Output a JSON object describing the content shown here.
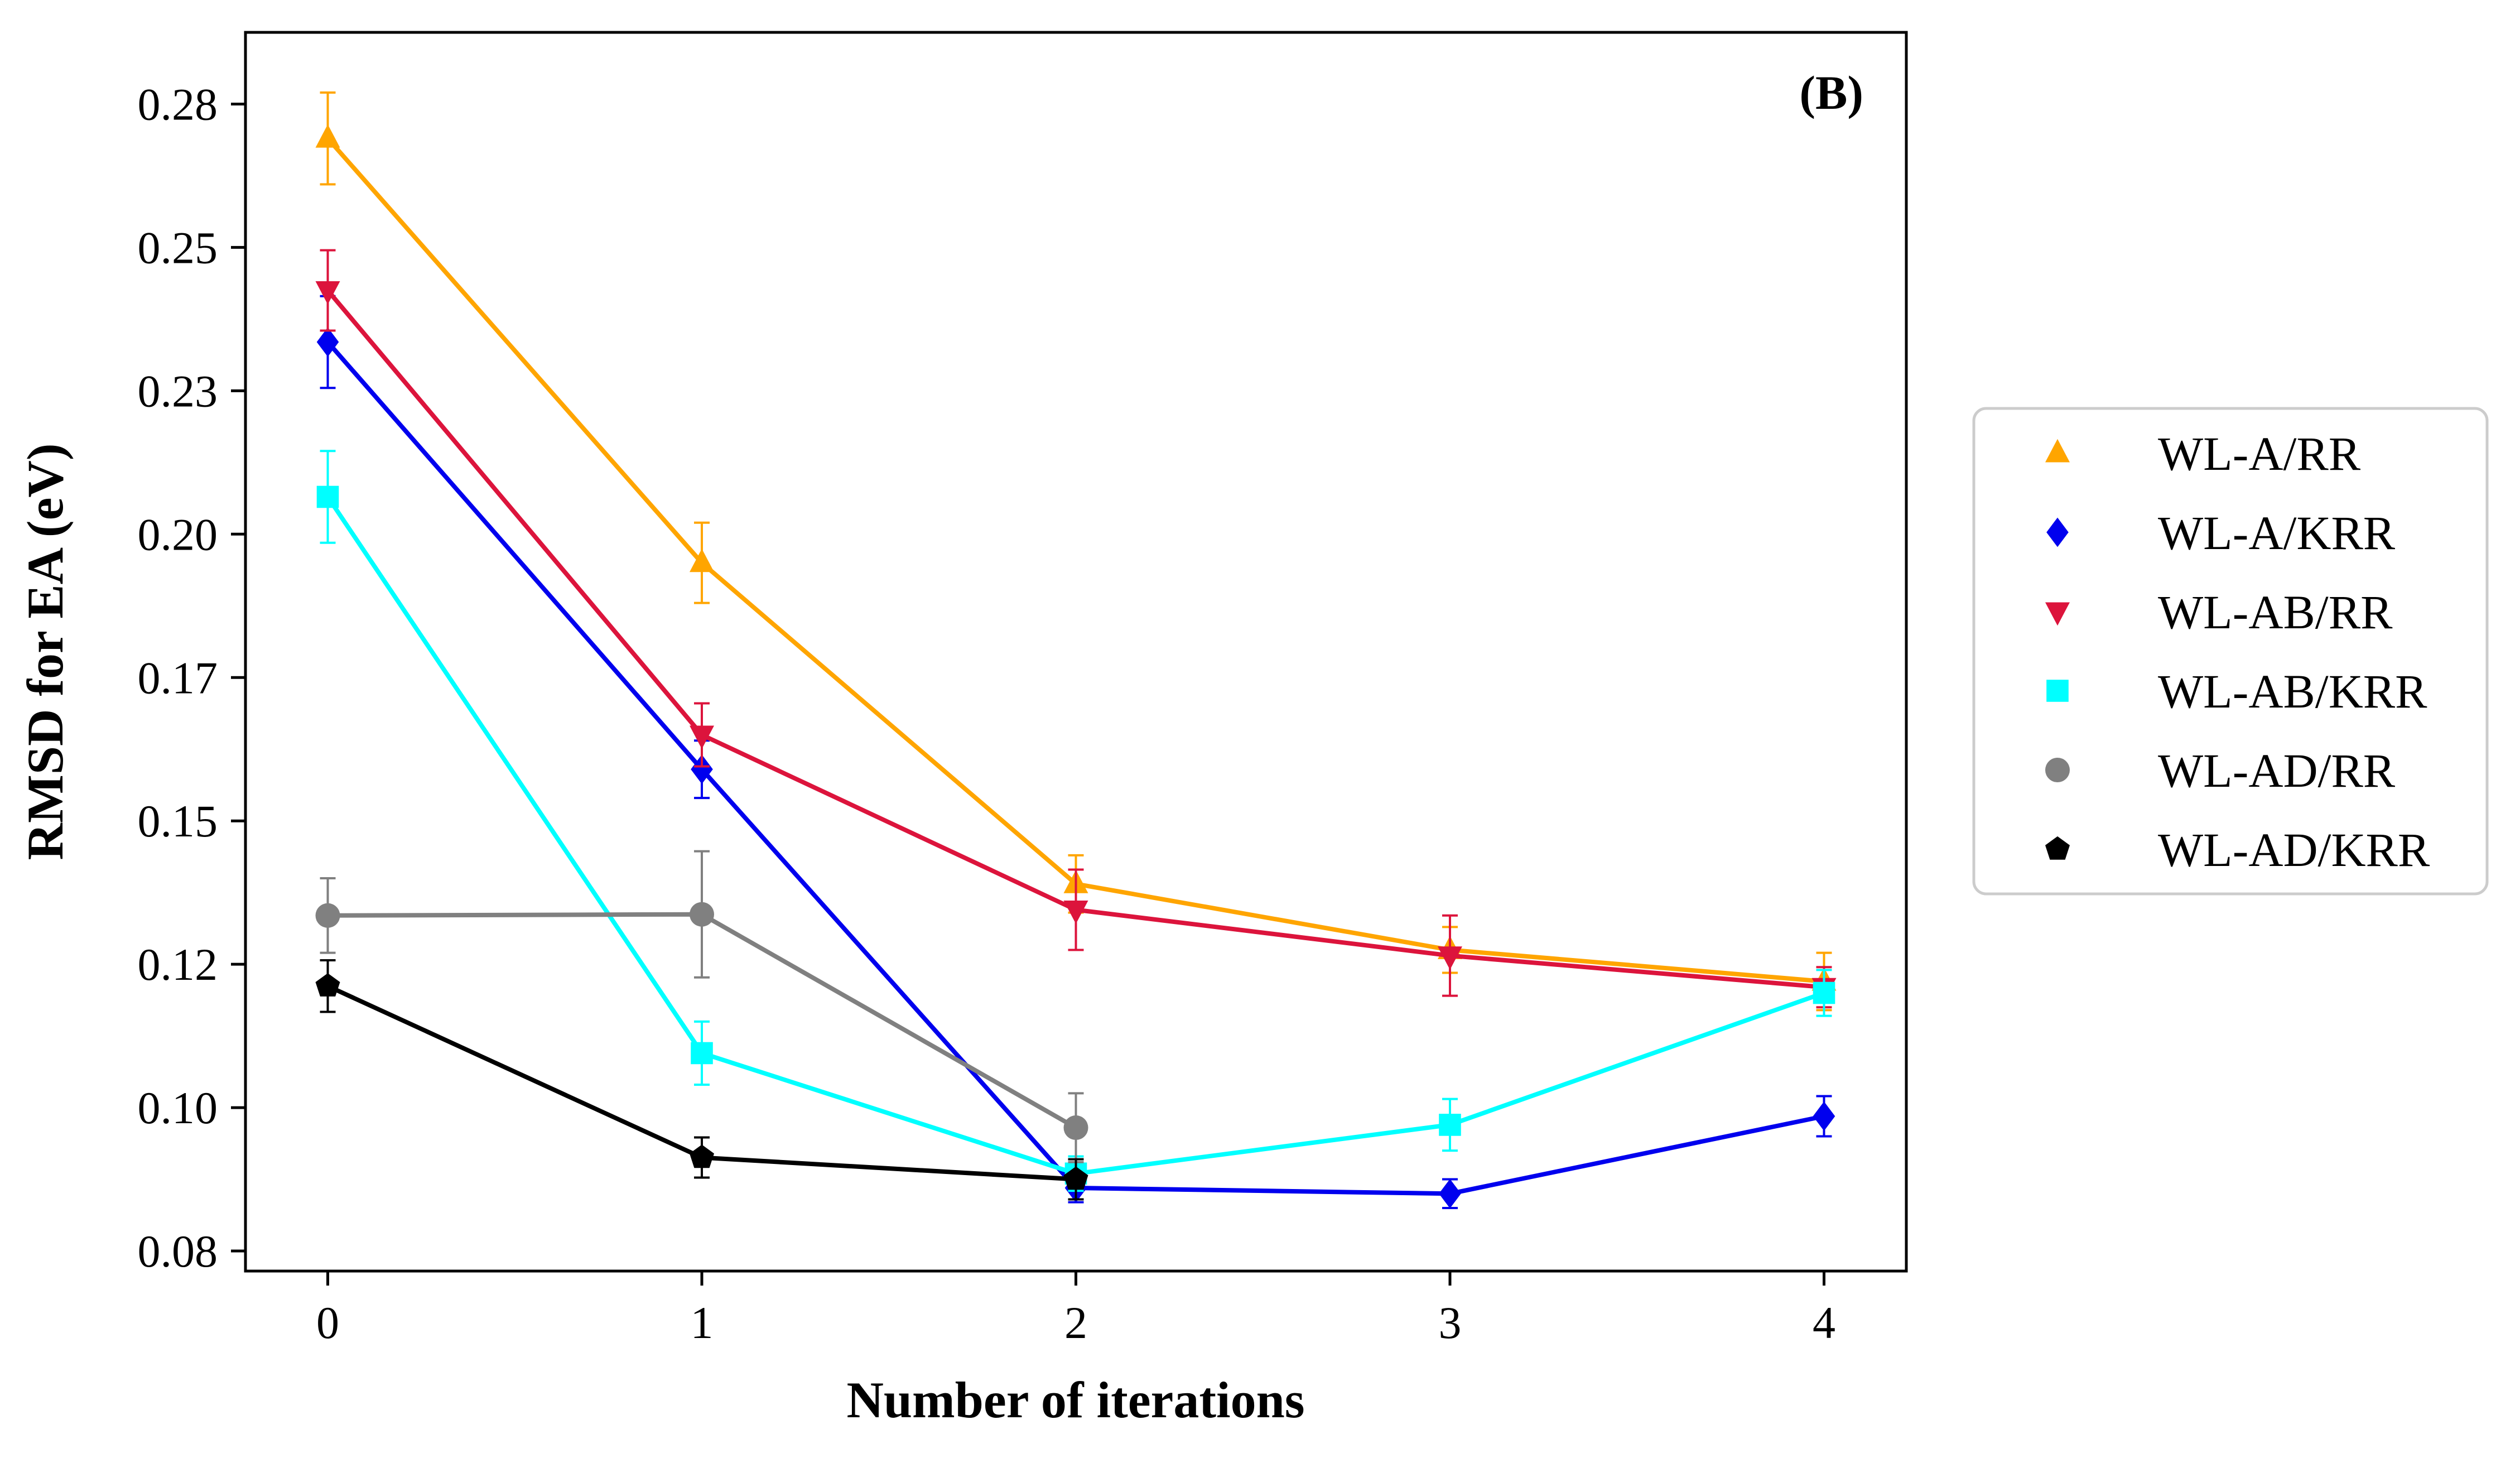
{
  "chart_data": {
    "type": "line",
    "panel_label": "(B)",
    "xlabel": "Number of iterations",
    "ylabel": "RMSD for EA (eV)",
    "x_ticks": [
      0,
      1,
      2,
      3,
      4
    ],
    "x_tick_labels": [
      "0",
      "1",
      "2",
      "3",
      "4"
    ],
    "y_ticks": [
      0.075,
      0.1,
      0.125,
      0.15,
      0.175,
      0.2,
      0.225,
      0.25,
      0.275
    ],
    "y_tick_labels": [
      "0.08",
      "0.10",
      "0.12",
      "0.15",
      "0.17",
      "0.20",
      "0.23",
      "0.25",
      "0.28"
    ],
    "xlim": [
      -0.22,
      4.22
    ],
    "ylim": [
      0.0715,
      0.2875
    ],
    "grid": false,
    "legend_position": "outside right",
    "series": [
      {
        "name": "WL-A/RR",
        "color": "#FFA500",
        "marker": "triangle-up",
        "x": [
          0,
          1,
          2,
          3,
          4
        ],
        "y": [
          0.269,
          0.195,
          0.139,
          0.1275,
          0.122
        ],
        "err": [
          0.008,
          0.007,
          0.005,
          0.004,
          0.005
        ]
      },
      {
        "name": "WL-A/KRR",
        "color": "#0000EE",
        "marker": "diamond",
        "x": [
          0,
          1,
          2,
          3,
          4
        ],
        "y": [
          0.2335,
          0.159,
          0.086,
          0.085,
          0.0985
        ],
        "err": [
          0.008,
          0.005,
          0.0025,
          0.0025,
          0.0035
        ]
      },
      {
        "name": "WL-AB/RR",
        "color": "#DC143C",
        "marker": "triangle-down",
        "x": [
          0,
          1,
          2,
          3,
          4
        ],
        "y": [
          0.2425,
          0.165,
          0.1345,
          0.1265,
          0.121
        ],
        "err": [
          0.007,
          0.0055,
          0.007,
          0.007,
          0.0035
        ]
      },
      {
        "name": "WL-AB/KRR",
        "color": "#00FFFF",
        "marker": "square",
        "x": [
          0,
          1,
          2,
          3,
          4
        ],
        "y": [
          0.2065,
          0.1095,
          0.0885,
          0.097,
          0.12
        ],
        "err": [
          0.008,
          0.0055,
          0.003,
          0.0045,
          0.004
        ]
      },
      {
        "name": "WL-AD/RR",
        "color": "#808080",
        "marker": "circle",
        "x": [
          0,
          1,
          2
        ],
        "y": [
          0.1335,
          0.1337,
          0.0965
        ],
        "err": [
          0.0065,
          0.011,
          0.006
        ]
      },
      {
        "name": "WL-AD/KRR",
        "color": "#000000",
        "marker": "pentagon",
        "x": [
          0,
          1,
          2
        ],
        "y": [
          0.1212,
          0.0913,
          0.0875
        ],
        "err": [
          0.0045,
          0.0035,
          0.0035
        ]
      }
    ]
  }
}
